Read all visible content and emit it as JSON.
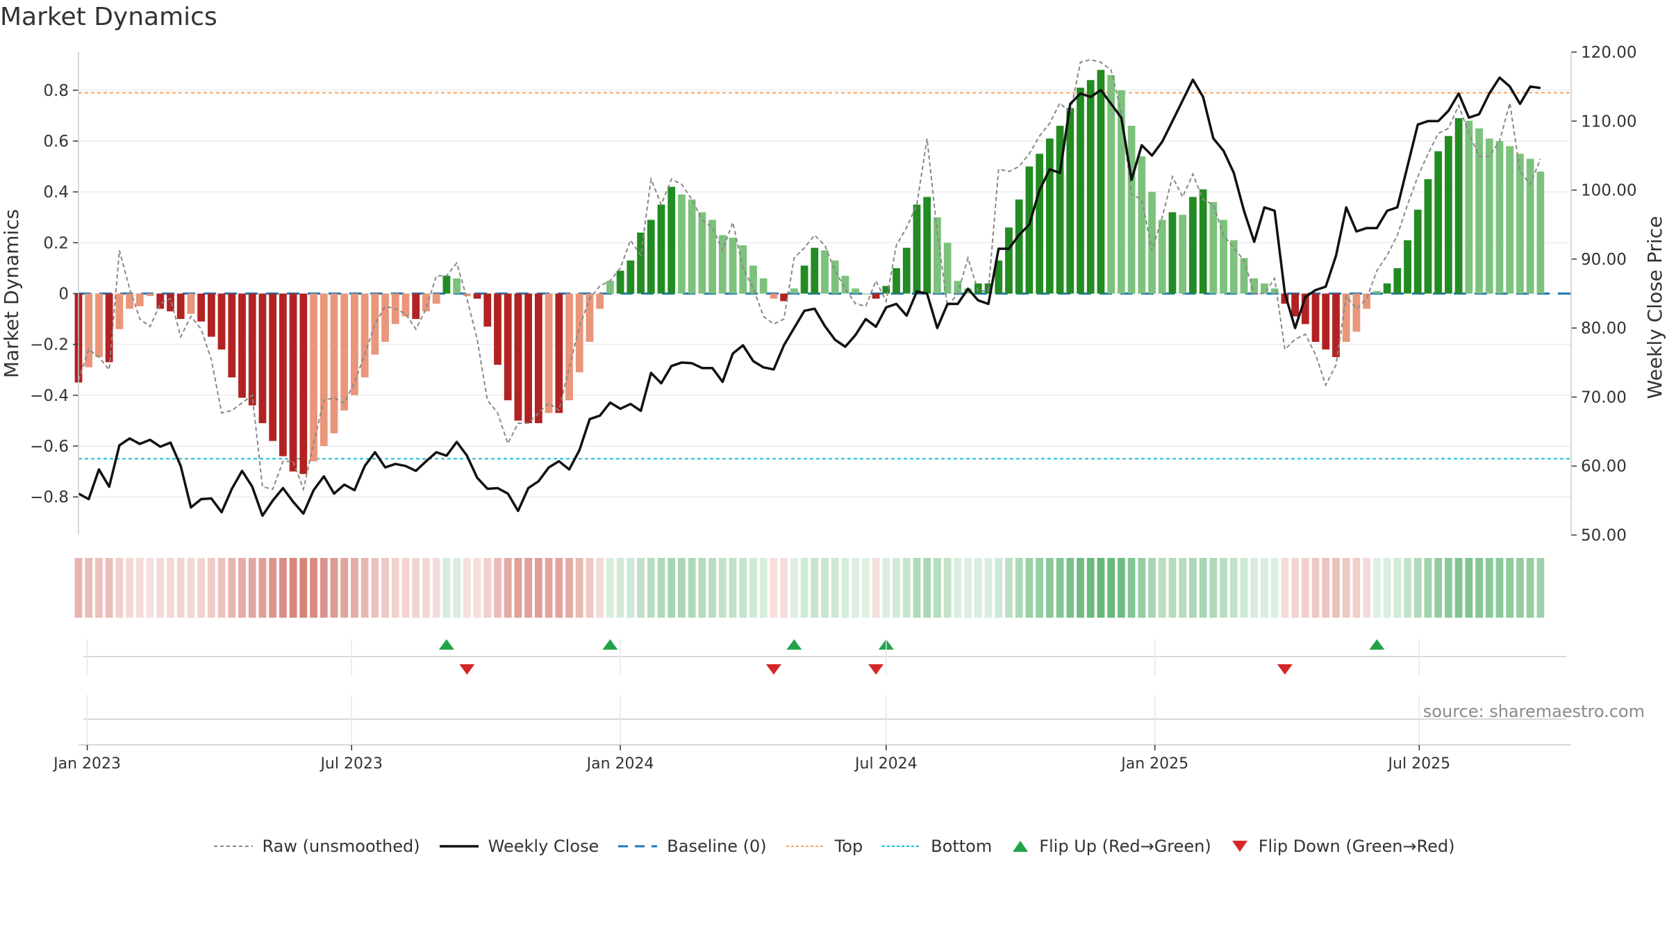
{
  "title": "Market Dynamics",
  "source": "source: sharemaestro.com",
  "legend": [
    {
      "label": "Raw (unsmoothed)",
      "style": "dashed",
      "color": "#888888",
      "icon": "dashed-line"
    },
    {
      "label": "Weekly Close",
      "style": "solid",
      "color": "#111111",
      "icon": "solid-line"
    },
    {
      "label": "Baseline (0)",
      "style": "longdash",
      "color": "#1f77b4",
      "icon": "dashed-line"
    },
    {
      "label": "Top",
      "style": "dotted",
      "color": "#f4a261",
      "icon": "dotted-line"
    },
    {
      "label": "Bottom",
      "style": "dotted",
      "color": "#17becf",
      "icon": "dotted-line"
    },
    {
      "label": "Flip Up (Red→Green)",
      "style": "triangle-up",
      "color": "#22a34a",
      "icon": "triangle-up-icon"
    },
    {
      "label": "Flip Down (Green→Red)",
      "style": "triangle-down",
      "color": "#d62728",
      "icon": "triangle-down-icon"
    }
  ],
  "colors": {
    "red_strong": "#b22222",
    "red_light": "#e9967a",
    "green_strong": "#228b22",
    "green_light": "#7cc27c",
    "raw": "#888888",
    "close": "#111111",
    "baseline": "#1f77b4",
    "top": "#f4a261",
    "bottom": "#17becf",
    "flip_up": "#22a34a",
    "flip_down": "#d62728"
  },
  "chart_data": {
    "type": "bar",
    "title": "Market Dynamics",
    "x_axis": {
      "type": "date",
      "start": "2022-12-26",
      "end": "2025-10-13",
      "ticks": [
        {
          "date": "2023-01-01",
          "label": "Jan 2023"
        },
        {
          "date": "2023-07-01",
          "label": "Jul 2023"
        },
        {
          "date": "2024-01-01",
          "label": "Jan 2024"
        },
        {
          "date": "2024-07-01",
          "label": "Jul 2024"
        },
        {
          "date": "2025-01-01",
          "label": "Jan 2025"
        },
        {
          "date": "2025-07-01",
          "label": "Jul 2025"
        }
      ]
    },
    "y_left": {
      "label": "Market Dynamics",
      "ylim": [
        -0.95,
        0.95
      ],
      "ticks": [
        -0.8,
        -0.6,
        -0.4,
        -0.2,
        0,
        0.2,
        0.4,
        0.6,
        0.8
      ],
      "tick_labels": [
        "−0.8",
        "−0.6",
        "−0.4",
        "−0.2",
        "0",
        "0.2",
        "0.4",
        "0.6",
        "0.8"
      ]
    },
    "y_right": {
      "label": "Weekly Close Price",
      "ylim": [
        50,
        120
      ],
      "ticks": [
        50,
        60,
        70,
        80,
        90,
        100,
        110,
        120
      ],
      "tick_labels": [
        "50.00",
        "60.00",
        "70.00",
        "80.00",
        "90.00",
        "100.00",
        "110.00",
        "120.00"
      ]
    },
    "top_level": 0.79,
    "bottom_level": -0.65,
    "baseline": 0,
    "grid": true,
    "legend_position": "bottom",
    "weekly": [
      {
        "date": "2022-12-26",
        "md": -0.35,
        "raw": -0.34,
        "close": 56.0
      },
      {
        "date": "2023-01-02",
        "md": -0.29,
        "raw": -0.22,
        "close": 55.2
      },
      {
        "date": "2023-01-09",
        "md": -0.25,
        "raw": -0.25,
        "close": 59.5
      },
      {
        "date": "2023-01-16",
        "md": -0.27,
        "raw": -0.3,
        "close": 57.0
      },
      {
        "date": "2023-01-23",
        "md": -0.14,
        "raw": 0.17,
        "close": 63.0
      },
      {
        "date": "2023-01-30",
        "md": -0.06,
        "raw": 0.02,
        "close": 64.0
      },
      {
        "date": "2023-02-06",
        "md": -0.05,
        "raw": -0.1,
        "close": 63.2
      },
      {
        "date": "2023-02-13",
        "md": -0.01,
        "raw": -0.13,
        "close": 63.8
      },
      {
        "date": "2023-02-20",
        "md": -0.06,
        "raw": -0.04,
        "close": 62.8
      },
      {
        "date": "2023-02-27",
        "md": -0.07,
        "raw": -0.02,
        "close": 63.4
      },
      {
        "date": "2023-03-06",
        "md": -0.1,
        "raw": -0.17,
        "close": 60.0
      },
      {
        "date": "2023-03-13",
        "md": -0.08,
        "raw": -0.09,
        "close": 54.0
      },
      {
        "date": "2023-03-20",
        "md": -0.11,
        "raw": -0.14,
        "close": 55.2
      },
      {
        "date": "2023-03-27",
        "md": -0.17,
        "raw": -0.26,
        "close": 55.3
      },
      {
        "date": "2023-04-03",
        "md": -0.22,
        "raw": -0.47,
        "close": 53.3
      },
      {
        "date": "2023-04-10",
        "md": -0.33,
        "raw": -0.46,
        "close": 56.7
      },
      {
        "date": "2023-04-17",
        "md": -0.41,
        "raw": -0.43,
        "close": 59.3
      },
      {
        "date": "2023-04-24",
        "md": -0.44,
        "raw": -0.4,
        "close": 57.0
      },
      {
        "date": "2023-05-01",
        "md": -0.51,
        "raw": -0.76,
        "close": 52.8
      },
      {
        "date": "2023-05-08",
        "md": -0.58,
        "raw": -0.77,
        "close": 55.0
      },
      {
        "date": "2023-05-15",
        "md": -0.64,
        "raw": -0.66,
        "close": 56.8
      },
      {
        "date": "2023-05-22",
        "md": -0.7,
        "raw": -0.66,
        "close": 54.8
      },
      {
        "date": "2023-05-29",
        "md": -0.71,
        "raw": -0.77,
        "close": 53.1
      },
      {
        "date": "2023-06-05",
        "md": -0.66,
        "raw": -0.59,
        "close": 56.5
      },
      {
        "date": "2023-06-12",
        "md": -0.6,
        "raw": -0.42,
        "close": 58.5
      },
      {
        "date": "2023-06-19",
        "md": -0.55,
        "raw": -0.41,
        "close": 56.0
      },
      {
        "date": "2023-06-26",
        "md": -0.46,
        "raw": -0.43,
        "close": 57.3
      },
      {
        "date": "2023-07-03",
        "md": -0.4,
        "raw": -0.35,
        "close": 56.5
      },
      {
        "date": "2023-07-10",
        "md": -0.33,
        "raw": -0.24,
        "close": 60.0
      },
      {
        "date": "2023-07-17",
        "md": -0.24,
        "raw": -0.12,
        "close": 62.0
      },
      {
        "date": "2023-07-24",
        "md": -0.19,
        "raw": -0.05,
        "close": 59.8
      },
      {
        "date": "2023-07-31",
        "md": -0.12,
        "raw": -0.06,
        "close": 60.3
      },
      {
        "date": "2023-08-07",
        "md": -0.09,
        "raw": -0.08,
        "close": 60.0
      },
      {
        "date": "2023-08-14",
        "md": -0.1,
        "raw": -0.14,
        "close": 59.3
      },
      {
        "date": "2023-08-21",
        "md": -0.07,
        "raw": -0.06,
        "close": 60.7
      },
      {
        "date": "2023-08-28",
        "md": -0.04,
        "raw": 0.07,
        "close": 62.0
      },
      {
        "date": "2023-09-04",
        "md": 0.07,
        "raw": 0.07,
        "close": 61.5
      },
      {
        "date": "2023-09-11",
        "md": 0.06,
        "raw": 0.12,
        "close": 63.5
      },
      {
        "date": "2023-09-18",
        "md": -0.01,
        "raw": -0.02,
        "close": 61.5
      },
      {
        "date": "2023-09-25",
        "md": -0.02,
        "raw": -0.18,
        "close": 58.3
      },
      {
        "date": "2023-10-02",
        "md": -0.13,
        "raw": -0.42,
        "close": 56.7
      },
      {
        "date": "2023-10-09",
        "md": -0.28,
        "raw": -0.47,
        "close": 56.8
      },
      {
        "date": "2023-10-16",
        "md": -0.42,
        "raw": -0.59,
        "close": 56.0
      },
      {
        "date": "2023-10-23",
        "md": -0.5,
        "raw": -0.51,
        "close": 53.5
      },
      {
        "date": "2023-10-30",
        "md": -0.51,
        "raw": -0.51,
        "close": 56.8
      },
      {
        "date": "2023-11-06",
        "md": -0.51,
        "raw": -0.47,
        "close": 57.8
      },
      {
        "date": "2023-11-13",
        "md": -0.47,
        "raw": -0.43,
        "close": 59.8
      },
      {
        "date": "2023-11-20",
        "md": -0.47,
        "raw": -0.46,
        "close": 60.7
      },
      {
        "date": "2023-11-27",
        "md": -0.42,
        "raw": -0.29,
        "close": 59.5
      },
      {
        "date": "2023-12-04",
        "md": -0.31,
        "raw": -0.13,
        "close": 62.3
      },
      {
        "date": "2023-12-11",
        "md": -0.19,
        "raw": -0.02,
        "close": 66.8
      },
      {
        "date": "2023-12-18",
        "md": -0.06,
        "raw": 0.03,
        "close": 67.3
      },
      {
        "date": "2023-12-25",
        "md": 0.05,
        "raw": 0.05,
        "close": 69.2
      },
      {
        "date": "2024-01-01",
        "md": 0.09,
        "raw": 0.1,
        "close": 68.3
      },
      {
        "date": "2024-01-08",
        "md": 0.13,
        "raw": 0.21,
        "close": 69.0
      },
      {
        "date": "2024-01-15",
        "md": 0.24,
        "raw": 0.15,
        "close": 68.0
      },
      {
        "date": "2024-01-22",
        "md": 0.29,
        "raw": 0.45,
        "close": 73.5
      },
      {
        "date": "2024-01-29",
        "md": 0.35,
        "raw": 0.35,
        "close": 72.0
      },
      {
        "date": "2024-02-05",
        "md": 0.42,
        "raw": 0.45,
        "close": 74.5
      },
      {
        "date": "2024-02-12",
        "md": 0.39,
        "raw": 0.43,
        "close": 75.0
      },
      {
        "date": "2024-02-19",
        "md": 0.37,
        "raw": 0.37,
        "close": 74.9
      },
      {
        "date": "2024-02-26",
        "md": 0.32,
        "raw": 0.29,
        "close": 74.2
      },
      {
        "date": "2024-03-04",
        "md": 0.29,
        "raw": 0.26,
        "close": 74.2
      },
      {
        "date": "2024-03-11",
        "md": 0.23,
        "raw": 0.17,
        "close": 72.2
      },
      {
        "date": "2024-03-18",
        "md": 0.22,
        "raw": 0.28,
        "close": 76.3
      },
      {
        "date": "2024-03-25",
        "md": 0.19,
        "raw": 0.1,
        "close": 77.5
      },
      {
        "date": "2024-04-01",
        "md": 0.11,
        "raw": 0.02,
        "close": 75.2
      },
      {
        "date": "2024-04-08",
        "md": 0.06,
        "raw": -0.09,
        "close": 74.3
      },
      {
        "date": "2024-04-15",
        "md": -0.02,
        "raw": -0.12,
        "close": 74.0
      },
      {
        "date": "2024-04-22",
        "md": -0.03,
        "raw": -0.1,
        "close": 77.5
      },
      {
        "date": "2024-04-29",
        "md": 0.02,
        "raw": 0.14,
        "close": 80.0
      },
      {
        "date": "2024-05-06",
        "md": 0.11,
        "raw": 0.18,
        "close": 82.5
      },
      {
        "date": "2024-05-13",
        "md": 0.18,
        "raw": 0.23,
        "close": 82.8
      },
      {
        "date": "2024-05-20",
        "md": 0.17,
        "raw": 0.19,
        "close": 80.3
      },
      {
        "date": "2024-05-27",
        "md": 0.13,
        "raw": 0.09,
        "close": 78.3
      },
      {
        "date": "2024-06-03",
        "md": 0.07,
        "raw": 0.02,
        "close": 77.3
      },
      {
        "date": "2024-06-10",
        "md": 0.02,
        "raw": -0.04,
        "close": 79.0
      },
      {
        "date": "2024-06-17",
        "md": 0.0,
        "raw": -0.05,
        "close": 81.3
      },
      {
        "date": "2024-06-24",
        "md": -0.02,
        "raw": 0.05,
        "close": 80.2
      },
      {
        "date": "2024-07-01",
        "md": 0.03,
        "raw": -0.03,
        "close": 83.0
      },
      {
        "date": "2024-07-08",
        "md": 0.1,
        "raw": 0.19,
        "close": 83.5
      },
      {
        "date": "2024-07-15",
        "md": 0.18,
        "raw": 0.26,
        "close": 81.8
      },
      {
        "date": "2024-07-22",
        "md": 0.35,
        "raw": 0.35,
        "close": 85.3
      },
      {
        "date": "2024-07-29",
        "md": 0.38,
        "raw": 0.61,
        "close": 85.0
      },
      {
        "date": "2024-08-05",
        "md": 0.3,
        "raw": 0.24,
        "close": 80.0
      },
      {
        "date": "2024-08-12",
        "md": 0.2,
        "raw": -0.05,
        "close": 83.5
      },
      {
        "date": "2024-08-19",
        "md": 0.05,
        "raw": 0.0,
        "close": 83.5
      },
      {
        "date": "2024-08-26",
        "md": 0.02,
        "raw": 0.14,
        "close": 85.7
      },
      {
        "date": "2024-09-02",
        "md": 0.04,
        "raw": 0.01,
        "close": 84.0
      },
      {
        "date": "2024-09-09",
        "md": 0.04,
        "raw": 0.01,
        "close": 83.5
      },
      {
        "date": "2024-09-16",
        "md": 0.13,
        "raw": 0.49,
        "close": 91.5
      },
      {
        "date": "2024-09-23",
        "md": 0.26,
        "raw": 0.48,
        "close": 91.5
      },
      {
        "date": "2024-09-30",
        "md": 0.37,
        "raw": 0.5,
        "close": 93.5
      },
      {
        "date": "2024-10-07",
        "md": 0.5,
        "raw": 0.55,
        "close": 95.0
      },
      {
        "date": "2024-10-14",
        "md": 0.55,
        "raw": 0.62,
        "close": 100.0
      },
      {
        "date": "2024-10-21",
        "md": 0.61,
        "raw": 0.67,
        "close": 103.0
      },
      {
        "date": "2024-10-28",
        "md": 0.66,
        "raw": 0.75,
        "close": 102.5
      },
      {
        "date": "2024-11-04",
        "md": 0.73,
        "raw": 0.71,
        "close": 112.5
      },
      {
        "date": "2024-11-11",
        "md": 0.81,
        "raw": 0.91,
        "close": 114.0
      },
      {
        "date": "2024-11-18",
        "md": 0.84,
        "raw": 0.92,
        "close": 113.5
      },
      {
        "date": "2024-11-25",
        "md": 0.88,
        "raw": 0.91,
        "close": 114.5
      },
      {
        "date": "2024-12-02",
        "md": 0.86,
        "raw": 0.88,
        "close": 112.5
      },
      {
        "date": "2024-12-09",
        "md": 0.8,
        "raw": 0.71,
        "close": 110.5
      },
      {
        "date": "2024-12-16",
        "md": 0.66,
        "raw": 0.39,
        "close": 101.5
      },
      {
        "date": "2024-12-23",
        "md": 0.54,
        "raw": 0.37,
        "close": 106.5
      },
      {
        "date": "2024-12-30",
        "md": 0.4,
        "raw": 0.17,
        "close": 105.0
      },
      {
        "date": "2025-01-06",
        "md": 0.29,
        "raw": 0.3,
        "close": 107.0
      },
      {
        "date": "2025-01-13",
        "md": 0.32,
        "raw": 0.46,
        "close": 110.0
      },
      {
        "date": "2025-01-20",
        "md": 0.31,
        "raw": 0.38,
        "close": 113.0
      },
      {
        "date": "2025-01-27",
        "md": 0.38,
        "raw": 0.47,
        "close": 116.0
      },
      {
        "date": "2025-02-03",
        "md": 0.41,
        "raw": 0.37,
        "close": 113.5
      },
      {
        "date": "2025-02-10",
        "md": 0.36,
        "raw": 0.35,
        "close": 107.5
      },
      {
        "date": "2025-02-17",
        "md": 0.29,
        "raw": 0.23,
        "close": 105.7
      },
      {
        "date": "2025-02-24",
        "md": 0.21,
        "raw": 0.18,
        "close": 102.5
      },
      {
        "date": "2025-03-03",
        "md": 0.14,
        "raw": 0.13,
        "close": 97.0
      },
      {
        "date": "2025-03-10",
        "md": 0.06,
        "raw": 0.0,
        "close": 92.5
      },
      {
        "date": "2025-03-17",
        "md": 0.04,
        "raw": 0.0,
        "close": 97.5
      },
      {
        "date": "2025-03-24",
        "md": 0.02,
        "raw": 0.06,
        "close": 97.0
      },
      {
        "date": "2025-03-31",
        "md": -0.04,
        "raw": -0.22,
        "close": 85.0
      },
      {
        "date": "2025-04-07",
        "md": -0.09,
        "raw": -0.18,
        "close": 80.0
      },
      {
        "date": "2025-04-14",
        "md": -0.12,
        "raw": -0.16,
        "close": 84.5
      },
      {
        "date": "2025-04-21",
        "md": -0.19,
        "raw": -0.24,
        "close": 85.5
      },
      {
        "date": "2025-04-28",
        "md": -0.22,
        "raw": -0.36,
        "close": 86.0
      },
      {
        "date": "2025-05-05",
        "md": -0.25,
        "raw": -0.28,
        "close": 90.5
      },
      {
        "date": "2025-05-12",
        "md": -0.19,
        "raw": -0.01,
        "close": 97.5
      },
      {
        "date": "2025-05-19",
        "md": -0.15,
        "raw": -0.06,
        "close": 94.0
      },
      {
        "date": "2025-05-26",
        "md": -0.06,
        "raw": -0.02,
        "close": 94.5
      },
      {
        "date": "2025-06-02",
        "md": 0.01,
        "raw": 0.09,
        "close": 94.5
      },
      {
        "date": "2025-06-09",
        "md": 0.04,
        "raw": 0.15,
        "close": 97.0
      },
      {
        "date": "2025-06-16",
        "md": 0.1,
        "raw": 0.23,
        "close": 97.5
      },
      {
        "date": "2025-06-23",
        "md": 0.21,
        "raw": 0.35,
        "close": 103.5
      },
      {
        "date": "2025-06-30",
        "md": 0.33,
        "raw": 0.46,
        "close": 109.5
      },
      {
        "date": "2025-07-07",
        "md": 0.45,
        "raw": 0.55,
        "close": 110.0
      },
      {
        "date": "2025-07-14",
        "md": 0.56,
        "raw": 0.63,
        "close": 110.0
      },
      {
        "date": "2025-07-21",
        "md": 0.62,
        "raw": 0.65,
        "close": 111.5
      },
      {
        "date": "2025-07-28",
        "md": 0.69,
        "raw": 0.74,
        "close": 114.0
      },
      {
        "date": "2025-08-04",
        "md": 0.68,
        "raw": 0.63,
        "close": 110.5
      },
      {
        "date": "2025-08-11",
        "md": 0.65,
        "raw": 0.54,
        "close": 111.0
      },
      {
        "date": "2025-08-18",
        "md": 0.61,
        "raw": 0.54,
        "close": 114.0
      },
      {
        "date": "2025-08-25",
        "md": 0.6,
        "raw": 0.6,
        "close": 116.3
      },
      {
        "date": "2025-09-01",
        "md": 0.58,
        "raw": 0.75,
        "close": 115.0
      },
      {
        "date": "2025-09-08",
        "md": 0.55,
        "raw": 0.48,
        "close": 112.5
      },
      {
        "date": "2025-09-15",
        "md": 0.53,
        "raw": 0.43,
        "close": 115.0
      },
      {
        "date": "2025-09-22",
        "md": 0.48,
        "raw": 0.53,
        "close": 114.8
      }
    ],
    "flip_up": [
      "2023-09-04",
      "2023-12-25",
      "2024-04-29",
      "2024-07-01",
      "2025-06-02"
    ],
    "flip_down": [
      "2023-09-18",
      "2024-04-15",
      "2024-06-24",
      "2025-03-31"
    ]
  }
}
